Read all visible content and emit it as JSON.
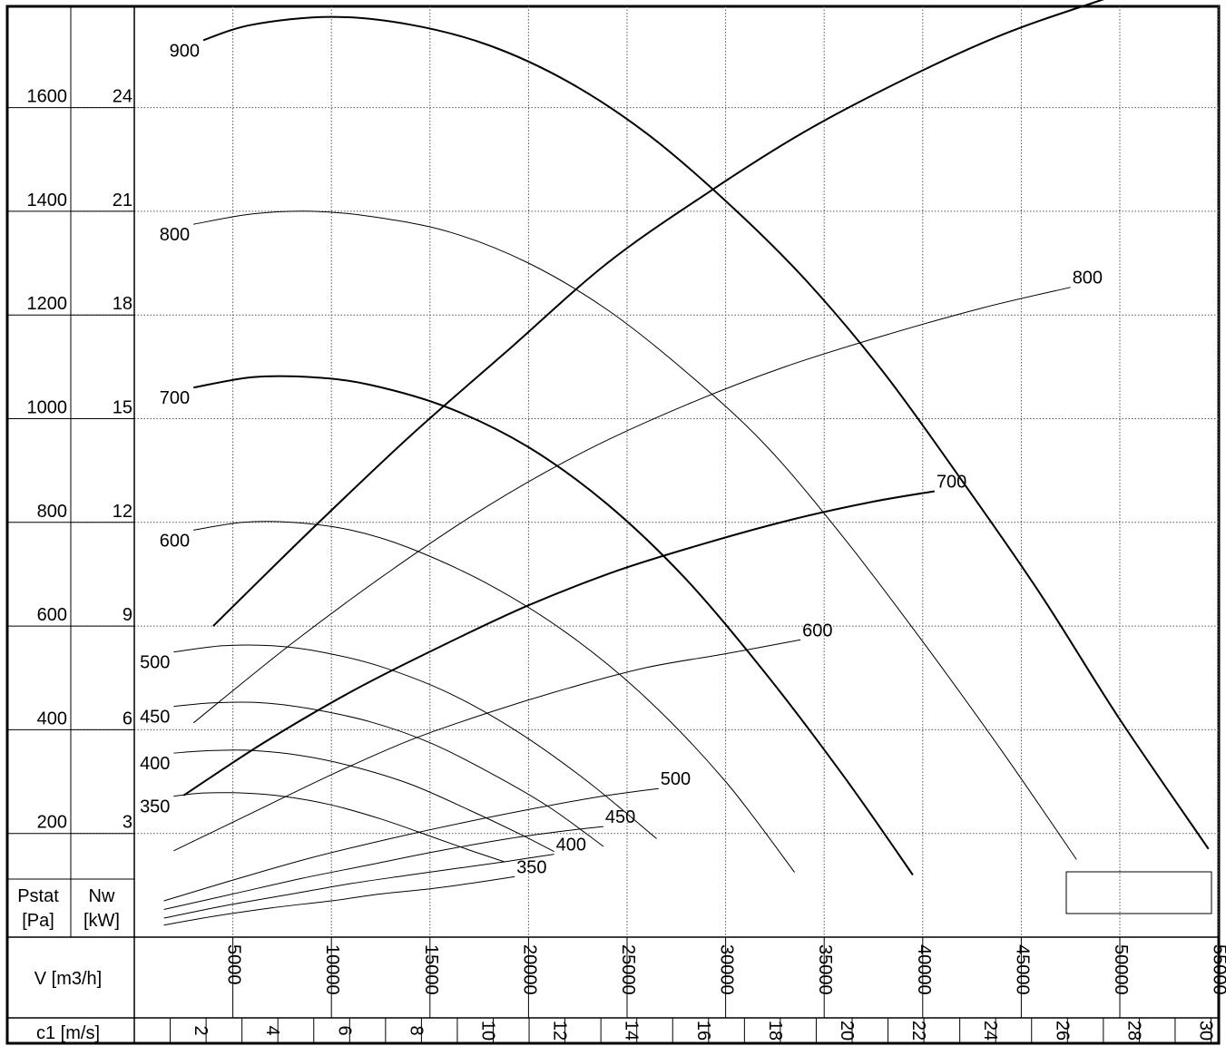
{
  "chart_data": {
    "type": "line",
    "title": "",
    "axes": {
      "x": {
        "label": "V [m3/h]",
        "range": [
          0,
          55000
        ],
        "ticks": [
          5000,
          10000,
          15000,
          20000,
          25000,
          30000,
          35000,
          40000,
          45000,
          50000,
          55000
        ]
      },
      "x2": {
        "label": "c1 [m/s]",
        "range": [
          0,
          30
        ],
        "ticks": [
          2,
          4,
          6,
          8,
          10,
          12,
          14,
          16,
          18,
          20,
          22,
          24,
          26,
          28,
          30
        ]
      },
      "y_pressure": {
        "label_line1": "Pstat",
        "label_line2": "[Pa]",
        "range": [
          0,
          1800
        ],
        "ticks": [
          200,
          400,
          600,
          800,
          1000,
          1200,
          1400,
          1600
        ]
      },
      "y_power": {
        "label_line1": "Nw",
        "label_line2": "[kW]",
        "range": [
          0,
          27
        ],
        "ticks": [
          3,
          6,
          9,
          12,
          15,
          18,
          21,
          24
        ]
      }
    },
    "grid": true,
    "legend": "none",
    "pressure_curves": [
      {
        "name": "900",
        "axis": "pressure",
        "bold": true,
        "x": [
          3500,
          6000,
          10000,
          14000,
          18000,
          22000,
          26000,
          30000,
          34000,
          38000,
          42000,
          46000,
          50000,
          54500
        ],
        "y": [
          1730,
          1760,
          1775,
          1760,
          1720,
          1650,
          1550,
          1420,
          1270,
          1090,
          880,
          660,
          420,
          170
        ]
      },
      {
        "name": "800",
        "axis": "pressure",
        "bold": false,
        "x": [
          3000,
          6000,
          9000,
          12000,
          16000,
          20000,
          24000,
          28000,
          32000,
          36000,
          40000,
          44000,
          47800
        ],
        "y": [
          1375,
          1395,
          1400,
          1390,
          1360,
          1300,
          1210,
          1090,
          950,
          770,
          570,
          360,
          150
        ]
      },
      {
        "name": "700",
        "axis": "pressure",
        "bold": true,
        "x": [
          3000,
          6000,
          9000,
          12000,
          16000,
          20000,
          24000,
          28000,
          32000,
          36000,
          39500
        ],
        "y": [
          1060,
          1080,
          1080,
          1065,
          1020,
          945,
          835,
          690,
          510,
          310,
          120
        ]
      },
      {
        "name": "600",
        "axis": "pressure",
        "bold": false,
        "x": [
          3000,
          5500,
          8000,
          11000,
          14000,
          18000,
          22000,
          26000,
          30000,
          33500
        ],
        "y": [
          785,
          800,
          800,
          785,
          750,
          680,
          585,
          460,
          300,
          125
        ]
      },
      {
        "name": "500",
        "axis": "pressure",
        "bold": false,
        "x": [
          2000,
          4500,
          7000,
          9500,
          12500,
          16000,
          19500,
          23000,
          26500
        ],
        "y": [
          550,
          562,
          562,
          550,
          522,
          470,
          395,
          300,
          190
        ]
      },
      {
        "name": "450",
        "axis": "pressure",
        "bold": false,
        "x": [
          2000,
          4000,
          6500,
          9000,
          12000,
          15000,
          18000,
          21000,
          23800
        ],
        "y": [
          445,
          452,
          452,
          440,
          415,
          375,
          318,
          252,
          175
        ]
      },
      {
        "name": "400",
        "axis": "pressure",
        "bold": false,
        "x": [
          2000,
          4000,
          6000,
          8500,
          11000,
          14000,
          17000,
          19500,
          21300
        ],
        "y": [
          355,
          360,
          360,
          350,
          330,
          295,
          245,
          200,
          165
        ]
      },
      {
        "name": "350",
        "axis": "pressure",
        "bold": false,
        "x": [
          2000,
          3500,
          5500,
          7500,
          10000,
          12500,
          15000,
          17000,
          18800
        ],
        "y": [
          272,
          278,
          278,
          272,
          255,
          228,
          195,
          168,
          145
        ]
      }
    ],
    "power_curves": [
      {
        "name": "900",
        "axis": "power",
        "bold": true,
        "x": [
          4000,
          9000,
          14000,
          19000,
          24000,
          29000,
          34000,
          39000,
          44000,
          49000,
          54500
        ],
        "y": [
          9,
          11.8,
          14.5,
          17,
          19.5,
          21.5,
          23.3,
          24.8,
          26.1,
          27.1,
          28.1
        ]
      },
      {
        "name": "800",
        "axis": "power",
        "bold": false,
        "x": [
          3000,
          8000,
          13000,
          18000,
          23000,
          28000,
          33000,
          38000,
          43000,
          47500
        ],
        "y": [
          6.2,
          8.5,
          10.6,
          12.5,
          14.1,
          15.4,
          16.5,
          17.4,
          18.2,
          18.8
        ]
      },
      {
        "name": "700",
        "axis": "power",
        "bold": true,
        "x": [
          2500,
          6500,
          11000,
          15500,
          20000,
          24500,
          29000,
          33500,
          37500,
          40600
        ],
        "y": [
          4.1,
          5.6,
          7.1,
          8.4,
          9.6,
          10.6,
          11.4,
          12.1,
          12.6,
          12.9
        ]
      },
      {
        "name": "600",
        "axis": "power",
        "bold": false,
        "x": [
          2000,
          6000,
          10000,
          14000,
          18000,
          22000,
          26000,
          30000,
          33800
        ],
        "y": [
          2.5,
          3.6,
          4.7,
          5.7,
          6.5,
          7.2,
          7.8,
          8.2,
          8.6
        ]
      },
      {
        "name": "500",
        "axis": "power",
        "bold": false,
        "x": [
          1500,
          5000,
          9000,
          13000,
          17000,
          21000,
          24000,
          26600
        ],
        "y": [
          1.05,
          1.65,
          2.3,
          2.85,
          3.35,
          3.8,
          4.1,
          4.3
        ]
      },
      {
        "name": "450",
        "axis": "power",
        "bold": false,
        "x": [
          1500,
          5000,
          8500,
          12000,
          15500,
          19000,
          21500,
          23800
        ],
        "y": [
          0.8,
          1.25,
          1.7,
          2.1,
          2.5,
          2.85,
          3.05,
          3.2
        ]
      },
      {
        "name": "400",
        "axis": "power",
        "bold": false,
        "x": [
          1500,
          4500,
          8000,
          11000,
          14000,
          16500,
          19000,
          21300
        ],
        "y": [
          0.55,
          0.9,
          1.25,
          1.55,
          1.8,
          2.0,
          2.2,
          2.4
        ]
      },
      {
        "name": "350",
        "axis": "power",
        "bold": false,
        "x": [
          1500,
          4000,
          7000,
          10000,
          12500,
          15000,
          17000,
          19300
        ],
        "y": [
          0.35,
          0.6,
          0.85,
          1.05,
          1.25,
          1.4,
          1.55,
          1.75
        ]
      }
    ]
  }
}
